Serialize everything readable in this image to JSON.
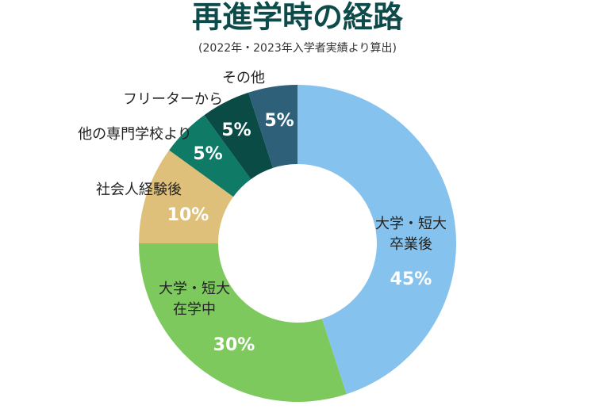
{
  "chart_data": {
    "type": "donut",
    "title": "再進学時の経路",
    "subtitle": "(2022年・2023年入学者実績より算出)",
    "categories": [
      "大学・短大\n卒業後",
      "大学・短大\n在学中",
      "社会人経験後",
      "他の専門学校より",
      "フリーターから",
      "その他"
    ],
    "values": [
      45,
      30,
      10,
      5,
      5,
      5
    ],
    "value_labels": [
      "45%",
      "30%",
      "10%",
      "5%",
      "5%",
      "5%"
    ],
    "colors": [
      "#86c2ee",
      "#7dc95e",
      "#dfc07a",
      "#0f7a66",
      "#0b4b45",
      "#2f6079"
    ]
  }
}
